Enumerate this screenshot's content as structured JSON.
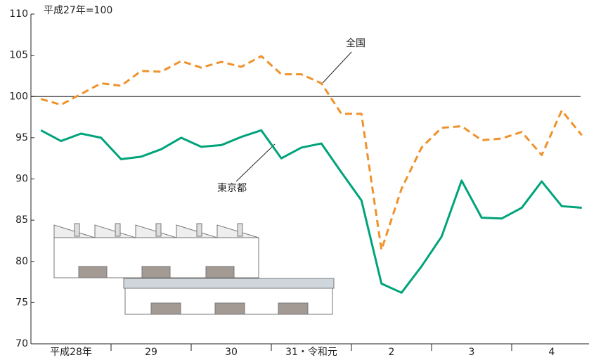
{
  "chart_data": {
    "type": "line",
    "unit_label": "平成27年=100",
    "categories": [
      null,
      "平成28年",
      null,
      null,
      null,
      "29",
      null,
      null,
      null,
      "30",
      null,
      null,
      null,
      "31・令和元",
      null,
      null,
      null,
      "2",
      null,
      null,
      null,
      "3",
      null,
      null,
      null,
      "4",
      null,
      null
    ],
    "series": [
      {
        "name": "全国",
        "color": "#f0922b",
        "dashed": true,
        "values": [
          99.7,
          99.0,
          100.3,
          101.6,
          101.3,
          103.1,
          103.0,
          104.3,
          103.5,
          104.2,
          103.6,
          104.9,
          102.7,
          102.7,
          101.6,
          97.9,
          97.9,
          81.4,
          88.8,
          93.8,
          96.2,
          96.4,
          94.7,
          94.9,
          95.7,
          92.9,
          98.3,
          95.3
        ]
      },
      {
        "name": "東京都",
        "color": "#00a37a",
        "dashed": false,
        "values": [
          95.9,
          94.6,
          95.5,
          95.0,
          92.4,
          92.7,
          93.6,
          95.0,
          93.9,
          94.1,
          95.1,
          95.9,
          92.5,
          93.8,
          94.3,
          90.8,
          87.4,
          77.3,
          76.2,
          79.4,
          83.0,
          89.8,
          85.3,
          85.2,
          86.5,
          89.7,
          86.7,
          86.5
        ]
      }
    ],
    "ylim": [
      70,
      110
    ],
    "yticks": [
      70,
      75,
      80,
      85,
      90,
      95,
      100,
      105,
      110
    ],
    "reference_line": 100
  }
}
